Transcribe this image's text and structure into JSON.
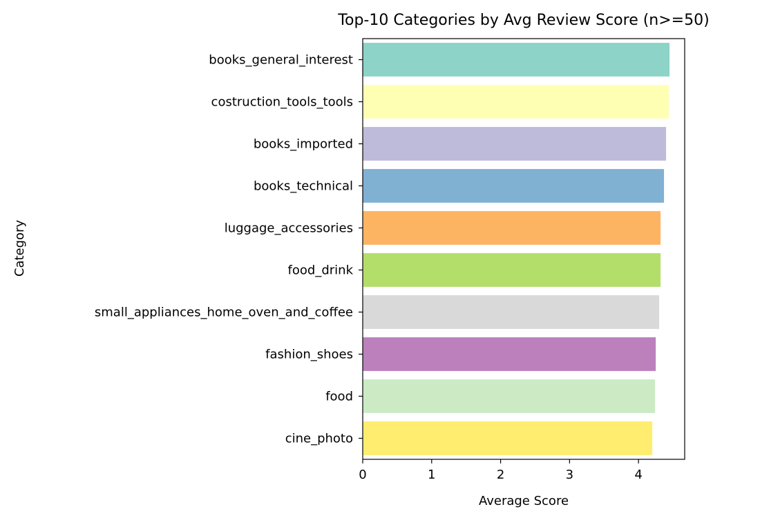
{
  "chart_data": {
    "type": "bar",
    "orientation": "horizontal",
    "title": "Top-10 Categories by Avg Review Score (n>=50)",
    "xlabel": "Average Score",
    "ylabel": "Category",
    "xlim": [
      0,
      4.67
    ],
    "x_ticks": [
      0,
      1,
      2,
      3,
      4
    ],
    "x_tick_labels": [
      "0",
      "1",
      "2",
      "3",
      "4"
    ],
    "grid": false,
    "categories": [
      "books_general_interest",
      "costruction_tools_tools",
      "books_imported",
      "books_technical",
      "luggage_accessories",
      "food_drink",
      "small_appliances_home_oven_and_coffee",
      "fashion_shoes",
      "food",
      "cine_photo"
    ],
    "values": [
      4.45,
      4.44,
      4.4,
      4.37,
      4.32,
      4.32,
      4.3,
      4.25,
      4.24,
      4.2
    ],
    "colors": [
      "#8dd3c7",
      "#ffffb3",
      "#bebada",
      "#80b1d3",
      "#fdb462",
      "#b3de69",
      "#d9d9d9",
      "#bc80bd",
      "#ccebc5",
      "#ffed6f"
    ]
  }
}
